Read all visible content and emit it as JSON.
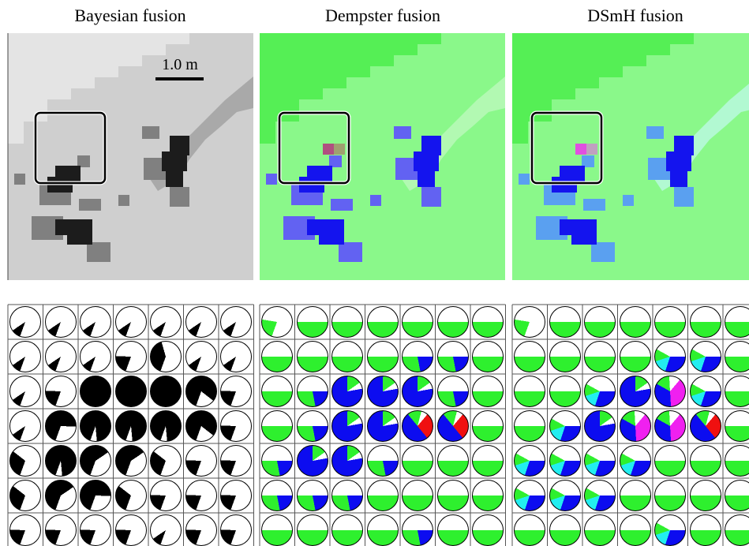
{
  "titles": [
    "Bayesian fusion",
    "Dempster fusion",
    "DSmH fusion"
  ],
  "scale_bar": "1.0 m"
}
